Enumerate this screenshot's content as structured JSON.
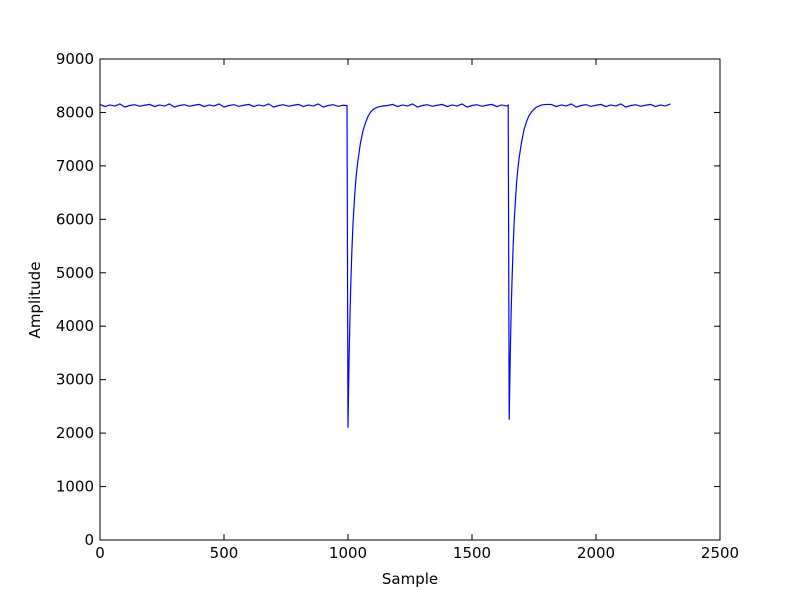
{
  "chart_data": {
    "type": "line",
    "xlabel": "Sample",
    "ylabel": "Amplitude",
    "xlim": [
      0,
      2500
    ],
    "xticks": [
      0,
      500,
      1000,
      1500,
      2000,
      2500
    ],
    "ylim": [
      0,
      9000
    ],
    "yticks": [
      0,
      1000,
      2000,
      3000,
      4000,
      5000,
      6000,
      7000,
      8000,
      9000
    ],
    "grid": false,
    "x": [
      0,
      20,
      40,
      60,
      80,
      100,
      120,
      140,
      160,
      180,
      200,
      220,
      240,
      260,
      280,
      300,
      320,
      340,
      360,
      380,
      400,
      420,
      440,
      460,
      480,
      500,
      520,
      540,
      560,
      580,
      600,
      620,
      640,
      660,
      680,
      700,
      720,
      740,
      760,
      780,
      800,
      820,
      840,
      860,
      880,
      900,
      920,
      940,
      960,
      980,
      996,
      1000,
      1004,
      1008,
      1012,
      1016,
      1020,
      1025,
      1030,
      1035,
      1040,
      1050,
      1060,
      1070,
      1080,
      1090,
      1100,
      1110,
      1120,
      1140,
      1160,
      1180,
      1200,
      1220,
      1240,
      1260,
      1280,
      1300,
      1320,
      1340,
      1360,
      1380,
      1400,
      1420,
      1440,
      1460,
      1480,
      1500,
      1520,
      1540,
      1560,
      1580,
      1600,
      1620,
      1640,
      1646,
      1650,
      1654,
      1658,
      1662,
      1666,
      1670,
      1675,
      1680,
      1685,
      1690,
      1700,
      1710,
      1720,
      1730,
      1740,
      1750,
      1760,
      1770,
      1780,
      1800,
      1820,
      1840,
      1860,
      1880,
      1900,
      1920,
      1940,
      1960,
      1980,
      2000,
      2020,
      2040,
      2060,
      2080,
      2100,
      2120,
      2140,
      2160,
      2180,
      2200,
      2220,
      2240,
      2260,
      2280,
      2300
    ],
    "series": [
      {
        "color": "#0000ff",
        "values": [
          8150,
          8110,
          8140,
          8120,
          8160,
          8100,
          8130,
          8145,
          8115,
          8135,
          8150,
          8110,
          8140,
          8120,
          8160,
          8100,
          8130,
          8145,
          8115,
          8135,
          8150,
          8110,
          8140,
          8120,
          8160,
          8100,
          8130,
          8145,
          8115,
          8135,
          8150,
          8110,
          8140,
          8120,
          8160,
          8100,
          8130,
          8145,
          8115,
          8135,
          8150,
          8110,
          8140,
          8120,
          8160,
          8100,
          8130,
          8145,
          8115,
          8135,
          8130,
          2100,
          3300,
          4200,
          4900,
          5450,
          5900,
          6300,
          6650,
          6900,
          7100,
          7420,
          7650,
          7800,
          7920,
          8000,
          8050,
          8080,
          8100,
          8120,
          8130,
          8150,
          8110,
          8140,
          8120,
          8160,
          8100,
          8130,
          8145,
          8115,
          8135,
          8150,
          8110,
          8140,
          8120,
          8160,
          8100,
          8130,
          8145,
          8115,
          8135,
          8150,
          8110,
          8140,
          8120,
          8135,
          2250,
          3400,
          4300,
          4950,
          5500,
          5950,
          6350,
          6700,
          6950,
          7150,
          7450,
          7680,
          7830,
          7940,
          8010,
          8060,
          8100,
          8120,
          8140,
          8150,
          8150,
          8110,
          8140,
          8120,
          8160,
          8100,
          8130,
          8145,
          8115,
          8135,
          8150,
          8110,
          8140,
          8120,
          8160,
          8100,
          8130,
          8145,
          8115,
          8135,
          8150,
          8110,
          8140,
          8120,
          8160
        ]
      }
    ]
  }
}
